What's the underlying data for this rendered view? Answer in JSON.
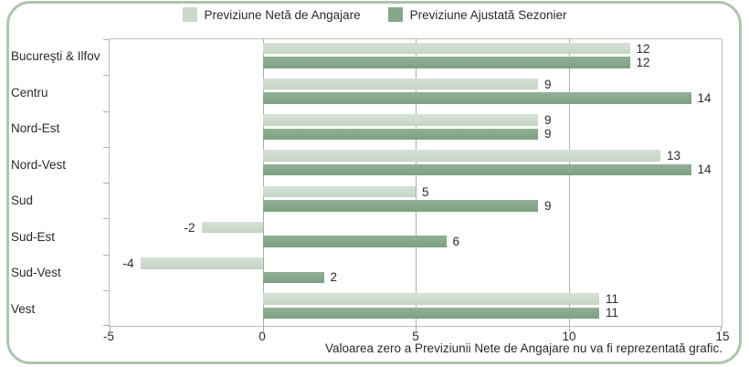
{
  "legend": {
    "items": [
      {
        "name": "net-forecast",
        "label": "Previziune Netă de Angajare",
        "color": "#cbd8ca"
      },
      {
        "name": "seasonally-adjusted-forecast",
        "label": "Previziune Ajustată Sezonier",
        "color": "#85a78a"
      }
    ]
  },
  "footnote": "Valoarea zero a Previziunii Nete de Angajare nu va fi reprezentată grafic.",
  "colors": {
    "light_bar": "#cbd8ca",
    "dark_bar": "#85a78a",
    "plot_border": "#b7c2b7",
    "gridline": "#a7b2a7",
    "outer_border": "#aec4ae",
    "text": "#2b2b2b"
  },
  "chart_data": {
    "type": "bar",
    "orientation": "horizontal",
    "title": "",
    "xlabel": "",
    "ylabel": "",
    "categories": [
      "Bucureşti & Ilfov",
      "Centru",
      "Nord-Est",
      "Nord-Vest",
      "Sud",
      "Sud-Est",
      "Sud-Vest",
      "Vest"
    ],
    "series": [
      {
        "name": "Previziune Netă de Angajare",
        "color": "#cbd8ca",
        "values": [
          12,
          9,
          9,
          13,
          5,
          -2,
          -4,
          11
        ]
      },
      {
        "name": "Previziune Ajustată Sezonier",
        "color": "#85a78a",
        "values": [
          12,
          14,
          9,
          14,
          9,
          6,
          2,
          11
        ]
      }
    ],
    "xlim": [
      -5,
      15
    ],
    "xticks": [
      -5,
      0,
      5,
      10,
      15
    ],
    "gridlines": [
      0,
      5,
      10
    ],
    "grid": "vertical-only",
    "legend_position": "top",
    "value_labels": "end-of-bar"
  }
}
